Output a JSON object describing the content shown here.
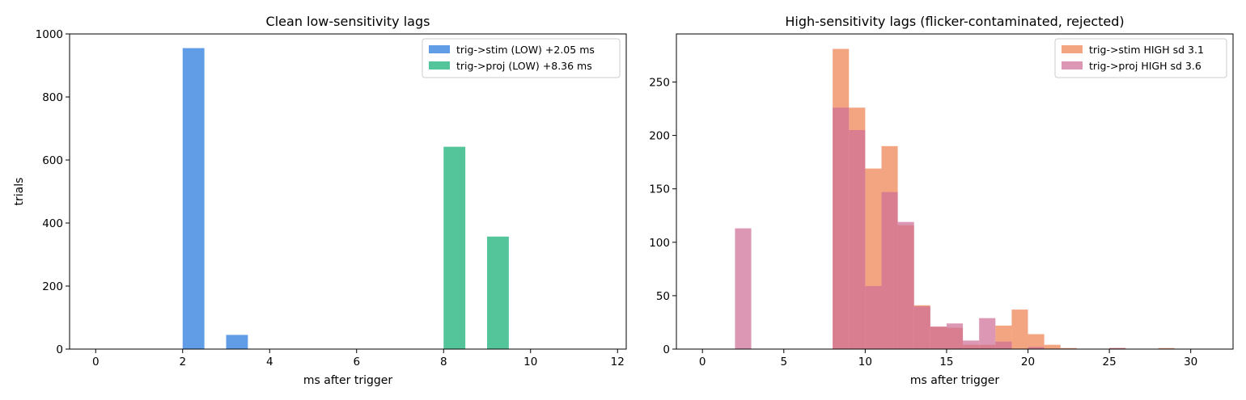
{
  "chart_data": [
    {
      "type": "bar",
      "title": "Clean low-sensitivity lags",
      "xlabel": "ms after trigger",
      "ylabel": "trials",
      "xlim": [
        -0.6,
        12.2
      ],
      "ylim": [
        0,
        1000
      ],
      "xticks": [
        0,
        2,
        4,
        6,
        8,
        10,
        12
      ],
      "yticks": [
        0,
        200,
        400,
        600,
        800,
        1000
      ],
      "bin_width": 0.5,
      "legend_position": "top-right",
      "series": [
        {
          "name": "trig->stim (LOW)  +2.05 ms",
          "color": "#4a90e2",
          "alpha": 0.88,
          "bins": [
            {
              "x": 2.0,
              "y": 955
            },
            {
              "x": 3.0,
              "y": 45
            }
          ]
        },
        {
          "name": "trig->proj (LOW)  +8.36 ms",
          "color": "#3cbc8d",
          "alpha": 0.88,
          "bins": [
            {
              "x": 8.0,
              "y": 642
            },
            {
              "x": 9.0,
              "y": 357
            }
          ]
        }
      ]
    },
    {
      "type": "bar",
      "title": "High-sensitivity lags (flicker-contaminated, rejected)",
      "xlabel": "ms after trigger",
      "ylabel": "",
      "xlim": [
        -1.6,
        32.6
      ],
      "ylim": [
        0,
        295
      ],
      "xticks": [
        0,
        5,
        10,
        15,
        20,
        25,
        30
      ],
      "yticks": [
        0,
        50,
        100,
        150,
        200,
        250
      ],
      "bin_width": 1,
      "legend_position": "top-right",
      "series": [
        {
          "name": "trig->stim HIGH  sd 3.1",
          "color": "#f08c5f",
          "alpha": 0.78,
          "bins": [
            {
              "x": 8,
              "y": 281
            },
            {
              "x": 9,
              "y": 226
            },
            {
              "x": 10,
              "y": 169
            },
            {
              "x": 11,
              "y": 190
            },
            {
              "x": 12,
              "y": 116
            },
            {
              "x": 13,
              "y": 41
            },
            {
              "x": 14,
              "y": 21
            },
            {
              "x": 15,
              "y": 20
            },
            {
              "x": 16,
              "y": 4
            },
            {
              "x": 17,
              "y": 4
            },
            {
              "x": 18,
              "y": 22
            },
            {
              "x": 19,
              "y": 37
            },
            {
              "x": 20,
              "y": 14
            },
            {
              "x": 21,
              "y": 4
            },
            {
              "x": 22,
              "y": 1
            },
            {
              "x": 25,
              "y": 1
            },
            {
              "x": 28,
              "y": 1
            }
          ]
        },
        {
          "name": "trig->proj HIGH  sd 3.6",
          "color": "#cf6f97",
          "alpha": 0.72,
          "bins": [
            {
              "x": 2,
              "y": 113
            },
            {
              "x": 8,
              "y": 226
            },
            {
              "x": 9,
              "y": 205
            },
            {
              "x": 10,
              "y": 59
            },
            {
              "x": 11,
              "y": 147
            },
            {
              "x": 12,
              "y": 119
            },
            {
              "x": 13,
              "y": 40
            },
            {
              "x": 14,
              "y": 21
            },
            {
              "x": 15,
              "y": 24
            },
            {
              "x": 16,
              "y": 8
            },
            {
              "x": 17,
              "y": 29
            },
            {
              "x": 18,
              "y": 7
            },
            {
              "x": 20,
              "y": 2
            },
            {
              "x": 25,
              "y": 1
            }
          ]
        }
      ]
    }
  ]
}
